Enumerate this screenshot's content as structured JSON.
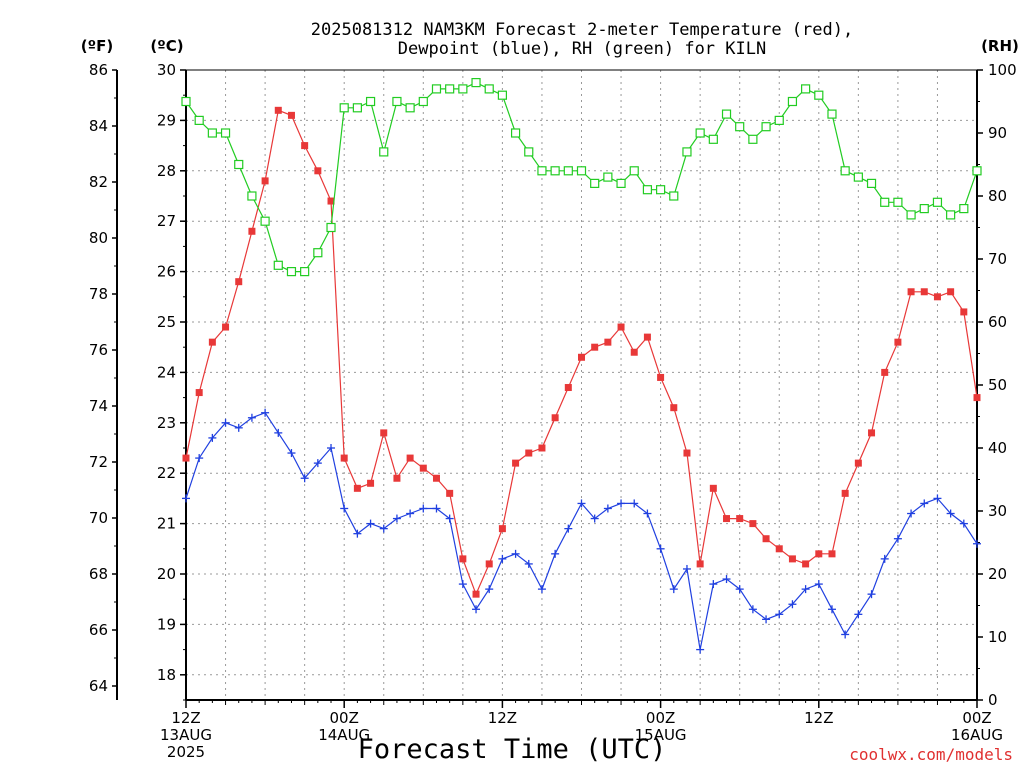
{
  "chart_data": {
    "type": "line",
    "title_line1": "2025081312 NAM3KM Forecast 2-meter Temperature (red),",
    "title_line2": "Dewpoint (blue), RH (green) for KILN",
    "xlabel": "Forecast Time (UTC)",
    "credit": "coolwx.com/models",
    "unit_labels": {
      "fahrenheit": "(ºF)",
      "celsius": "(ºC)",
      "rh": "(RH)"
    },
    "x_range_hours": [
      0,
      60
    ],
    "celsius_range": [
      17.5,
      30
    ],
    "rh_range": [
      0,
      100
    ],
    "fahrenheit_ticks": [
      "64",
      "66",
      "68",
      "70",
      "72",
      "74",
      "76",
      "78",
      "80",
      "82",
      "84",
      "86"
    ],
    "celsius_ticks": [
      "18",
      "19",
      "20",
      "21",
      "22",
      "23",
      "24",
      "25",
      "26",
      "27",
      "28",
      "29",
      "30"
    ],
    "rh_ticks": [
      "0",
      "10",
      "20",
      "30",
      "40",
      "50",
      "60",
      "70",
      "80",
      "90",
      "100"
    ],
    "x_ticks": [
      {
        "hour": 0,
        "lines": [
          "12Z",
          "13AUG",
          "2025"
        ]
      },
      {
        "hour": 12,
        "lines": [
          "00Z",
          "14AUG"
        ]
      },
      {
        "hour": 24,
        "lines": [
          "12Z"
        ]
      },
      {
        "hour": 36,
        "lines": [
          "00Z",
          "15AUG"
        ]
      },
      {
        "hour": 48,
        "lines": [
          "12Z"
        ]
      },
      {
        "hour": 60,
        "lines": [
          "00Z",
          "16AUG"
        ]
      }
    ],
    "hours": [
      0,
      1,
      2,
      3,
      4,
      5,
      6,
      7,
      8,
      9,
      10,
      11,
      12,
      13,
      14,
      15,
      16,
      17,
      18,
      19,
      20,
      21,
      22,
      23,
      24,
      25,
      26,
      27,
      28,
      29,
      30,
      31,
      32,
      33,
      34,
      35,
      36,
      37,
      38,
      39,
      40,
      41,
      42,
      43,
      44,
      45,
      46,
      47,
      48,
      49,
      50,
      51,
      52,
      53,
      54,
      55,
      56,
      57,
      58,
      59,
      60
    ],
    "series": [
      {
        "name": "2-meter Temperature",
        "color": "#e83838",
        "axis": "celsius",
        "marker": "filled-square",
        "values": [
          22.3,
          23.6,
          24.6,
          24.9,
          25.8,
          26.8,
          27.8,
          29.2,
          29.1,
          28.5,
          28.0,
          27.4,
          22.3,
          21.7,
          21.8,
          22.8,
          21.9,
          22.3,
          22.1,
          21.9,
          21.6,
          20.3,
          19.6,
          20.2,
          20.9,
          22.2,
          22.4,
          22.5,
          23.1,
          23.7,
          24.3,
          24.5,
          24.6,
          24.9,
          24.4,
          24.7,
          23.9,
          23.3,
          22.4,
          20.2,
          21.7,
          21.1,
          21.1,
          21.0,
          20.7,
          20.5,
          20.3,
          20.2,
          20.4,
          20.4,
          21.6,
          22.2,
          22.8,
          24.0,
          24.6,
          25.6,
          25.6,
          25.5,
          25.6,
          25.2,
          23.5
        ]
      },
      {
        "name": "Dewpoint",
        "color": "#2040e0",
        "axis": "celsius",
        "marker": "plus",
        "values": [
          21.5,
          22.3,
          22.7,
          23.0,
          22.9,
          23.1,
          23.2,
          22.8,
          22.4,
          21.9,
          22.2,
          22.5,
          21.3,
          20.8,
          21.0,
          20.9,
          21.1,
          21.2,
          21.3,
          21.3,
          21.1,
          19.8,
          19.3,
          19.7,
          20.3,
          20.4,
          20.2,
          19.7,
          20.4,
          20.9,
          21.4,
          21.1,
          21.3,
          21.4,
          21.4,
          21.2,
          20.5,
          19.7,
          20.1,
          18.5,
          19.8,
          19.9,
          19.7,
          19.3,
          19.1,
          19.2,
          19.4,
          19.7,
          19.8,
          19.3,
          18.8,
          19.2,
          19.6,
          20.3,
          20.7,
          21.2,
          21.4,
          21.5,
          21.2,
          21.0,
          20.6
        ]
      },
      {
        "name": "RH",
        "color": "#22cc22",
        "axis": "rh",
        "marker": "open-square",
        "values": [
          95,
          92,
          90,
          90,
          85,
          80,
          76,
          69,
          68,
          68,
          71,
          75,
          94,
          94,
          95,
          87,
          95,
          94,
          95,
          97,
          97,
          97,
          98,
          97,
          96,
          90,
          87,
          84,
          84,
          84,
          84,
          82,
          83,
          82,
          84,
          81,
          81,
          80,
          87,
          90,
          89,
          93,
          91,
          89,
          91,
          92,
          95,
          97,
          96,
          93,
          84,
          83,
          82,
          79,
          79,
          77,
          78,
          79,
          77,
          78,
          84
        ]
      }
    ]
  }
}
